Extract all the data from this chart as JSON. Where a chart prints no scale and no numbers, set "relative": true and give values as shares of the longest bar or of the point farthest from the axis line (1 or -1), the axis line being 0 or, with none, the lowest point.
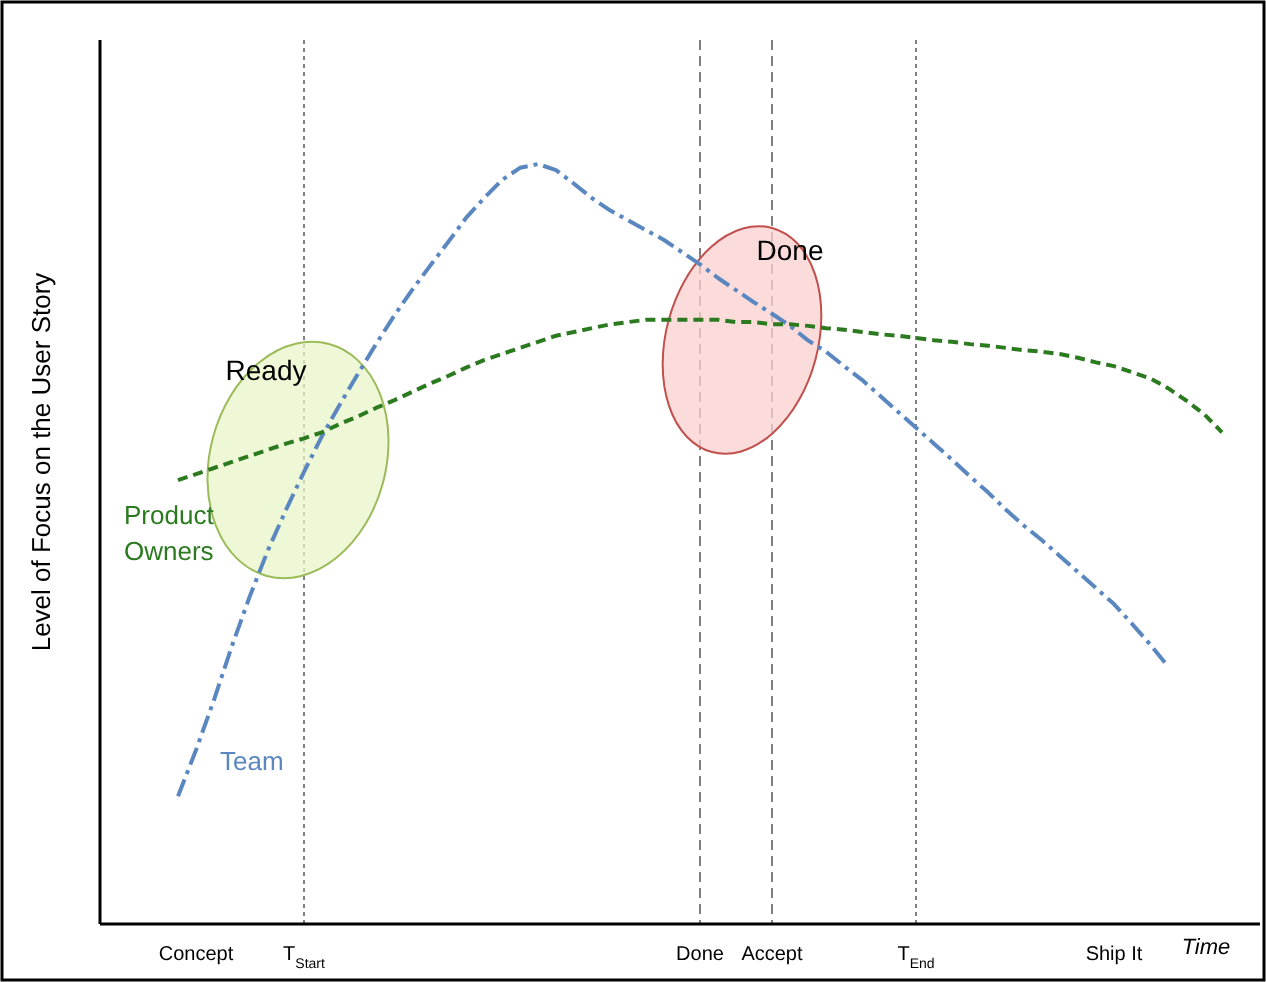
{
  "chart_data": {
    "type": "line",
    "relative": true,
    "ylabel": "Level of Focus on the User Story",
    "xlabel": "Time",
    "categories": [
      null,
      null,
      "Concept",
      null,
      null,
      null,
      null,
      null,
      "T$_{Start}$",
      null,
      null,
      null,
      null,
      null,
      null,
      null,
      null,
      null,
      null,
      null,
      null,
      null,
      null,
      null,
      null,
      null,
      null,
      null,
      null,
      null,
      "Done",
      null,
      null,
      null,
      "Accept",
      null,
      null,
      null,
      null,
      null,
      null,
      null,
      "T$_{End}$",
      null,
      null,
      null,
      null,
      null,
      null,
      null,
      null,
      null,
      null,
      "Ship It",
      null,
      null,
      null,
      null,
      null,
      null,
      null
    ],
    "ref_lines": [
      {
        "axis": "x",
        "value": "T$_{Start}$",
        "color": "#808080",
        "line_style": "dotted"
      },
      {
        "axis": "x",
        "value": "Done",
        "color": "#808080",
        "line_style": "dashed"
      },
      {
        "axis": "x",
        "value": "Accept",
        "color": "#808080",
        "line_style": "dashed"
      },
      {
        "axis": "x",
        "value": "T$_{End}$",
        "color": "#808080",
        "line_style": "dotted"
      }
    ],
    "series": [
      {
        "name": "Team",
        "color": "#5b87c0",
        "line_style": "dashdot",
        "values": [
          null,
          0.168,
          0.229,
          0.295,
          0.366,
          0.432,
          0.492,
          0.545,
          0.595,
          0.642,
          0.684,
          0.724,
          0.763,
          0.8,
          0.834,
          0.866,
          0.897,
          0.929,
          0.955,
          0.979,
          0.995,
          1,
          0.992,
          0.974,
          0.955,
          0.939,
          0.926,
          0.913,
          0.9,
          0.884,
          0.868,
          0.85,
          0.834,
          0.818,
          0.803,
          0.787,
          0.768,
          0.753,
          0.734,
          0.716,
          0.695,
          0.674,
          0.653,
          0.632,
          0.611,
          0.589,
          0.568,
          0.545,
          0.524,
          0.505,
          0.484,
          0.463,
          0.442,
          0.421,
          0.395,
          0.368,
          0.339,
          null,
          null,
          null,
          null
        ]
      },
      {
        "name": "Product Owners",
        "color": "#2b7a1f",
        "line_style": "dashed",
        "values": [
          null,
          0.584,
          0.592,
          0.6,
          0.608,
          0.616,
          0.624,
          0.632,
          0.639,
          0.647,
          0.658,
          0.668,
          0.679,
          0.689,
          0.7,
          0.711,
          0.721,
          0.732,
          0.742,
          0.75,
          0.758,
          0.766,
          0.774,
          0.779,
          0.784,
          0.789,
          0.792,
          0.795,
          0.795,
          0.795,
          0.795,
          0.795,
          0.792,
          0.792,
          0.789,
          0.789,
          0.787,
          0.784,
          0.782,
          0.779,
          0.776,
          0.774,
          0.771,
          0.768,
          0.766,
          0.763,
          0.761,
          0.758,
          0.755,
          0.753,
          0.75,
          0.745,
          0.739,
          0.734,
          0.726,
          0.718,
          0.705,
          0.689,
          0.671,
          0.647,
          null
        ]
      }
    ],
    "annotations": [
      "Ready",
      "Done"
    ]
  }
}
